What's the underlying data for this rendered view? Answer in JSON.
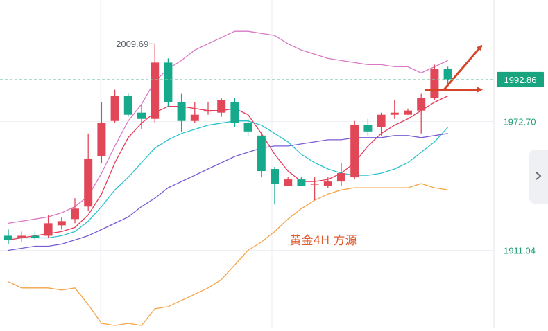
{
  "chart_data": {
    "type": "candlestick",
    "watermark": "黄金4H  方源",
    "y_axis": {
      "ticks": [
        {
          "value": 1972.7,
          "label": "1972.70"
        },
        {
          "value": 1911.04,
          "label": "1911.04"
        }
      ],
      "ylim": [
        1874,
        2031
      ],
      "current_price": {
        "value": 1992.86,
        "label": "1992.86"
      }
    },
    "annotation": {
      "label": "2009.69",
      "value": 2009.69,
      "candle_index": 11
    },
    "candles": [
      {
        "o": 1918,
        "h": 1921,
        "l": 1914,
        "c": 1916
      },
      {
        "o": 1917,
        "h": 1920,
        "l": 1915,
        "c": 1918
      },
      {
        "o": 1918,
        "h": 1920,
        "l": 1916,
        "c": 1917
      },
      {
        "o": 1918,
        "h": 1928,
        "l": 1917,
        "c": 1924
      },
      {
        "o": 1923,
        "h": 1927,
        "l": 1921,
        "c": 1925
      },
      {
        "o": 1926,
        "h": 1936,
        "l": 1924,
        "c": 1931
      },
      {
        "o": 1932,
        "h": 1967,
        "l": 1930,
        "c": 1955
      },
      {
        "o": 1956,
        "h": 1982,
        "l": 1953,
        "c": 1972
      },
      {
        "o": 1973,
        "h": 1988,
        "l": 1972,
        "c": 1985
      },
      {
        "o": 1985,
        "h": 1986,
        "l": 1975,
        "c": 1976
      },
      {
        "o": 1977,
        "h": 1981,
        "l": 1969,
        "c": 1974
      },
      {
        "o": 1974,
        "h": 2009.69,
        "l": 1972,
        "c": 2001
      },
      {
        "o": 2001,
        "h": 2003,
        "l": 1980,
        "c": 1982
      },
      {
        "o": 1982,
        "h": 1986,
        "l": 1968,
        "c": 1973
      },
      {
        "o": 1973,
        "h": 1982,
        "l": 1972,
        "c": 1976
      },
      {
        "o": 1978,
        "h": 1982,
        "l": 1976,
        "c": 1978
      },
      {
        "o": 1977,
        "h": 1984,
        "l": 1975,
        "c": 1983
      },
      {
        "o": 1982,
        "h": 1984,
        "l": 1970,
        "c": 1972
      },
      {
        "o": 1972,
        "h": 1974,
        "l": 1966,
        "c": 1968
      },
      {
        "o": 1966,
        "h": 1967,
        "l": 1946,
        "c": 1949
      },
      {
        "o": 1950,
        "h": 1951,
        "l": 1933,
        "c": 1943
      },
      {
        "o": 1942,
        "h": 1946,
        "l": 1942,
        "c": 1945
      },
      {
        "o": 1945,
        "h": 1946,
        "l": 1942,
        "c": 1942
      },
      {
        "o": 1943,
        "h": 1946,
        "l": 1935,
        "c": 1943
      },
      {
        "o": 1942,
        "h": 1946,
        "l": 1941,
        "c": 1944
      },
      {
        "o": 1944,
        "h": 1953,
        "l": 1942,
        "c": 1948
      },
      {
        "o": 1946,
        "h": 1973,
        "l": 1945,
        "c": 1971
      },
      {
        "o": 1971,
        "h": 1974,
        "l": 1966,
        "c": 1968
      },
      {
        "o": 1970,
        "h": 1977,
        "l": 1966,
        "c": 1976
      },
      {
        "o": 1976,
        "h": 1983,
        "l": 1974,
        "c": 1977
      },
      {
        "o": 1976,
        "h": 1979,
        "l": 1976,
        "c": 1978
      },
      {
        "o": 1978,
        "h": 1986,
        "l": 1967,
        "c": 1984
      },
      {
        "o": 1984,
        "h": 2000,
        "l": 1983,
        "c": 1998
      },
      {
        "o": 1998,
        "h": 1999,
        "l": 1990,
        "c": 1993
      }
    ],
    "overlays": [
      {
        "name": "",
        "color": "#da77c6",
        "values": [
          1924,
          1925,
          1926,
          1927,
          1929,
          1932,
          1937,
          1948,
          1961,
          1973,
          1981,
          1992,
          1998,
          2002,
          2007,
          2010,
          2013,
          2016,
          2016,
          2015,
          2014,
          2010,
          2007,
          2005,
          2003,
          2002,
          2001,
          2000,
          2000,
          1999,
          1999,
          1996,
          1999,
          2002
        ]
      },
      {
        "name": "",
        "color": "#e8395b",
        "values": [
          1916,
          1917,
          1918,
          1919,
          1920,
          1922,
          1928,
          1938,
          1953,
          1965,
          1972,
          1977,
          1980,
          1980,
          1979,
          1978,
          1978,
          1979,
          1976,
          1967,
          1957,
          1949,
          1944,
          1944,
          1945,
          1948,
          1953,
          1961,
          1967,
          1971,
          1974,
          1978,
          1982,
          1985
        ]
      },
      {
        "name": "",
        "color": "#2cc3cf",
        "values": [
          1917,
          1917,
          1917,
          1917,
          1918,
          1920,
          1925,
          1932,
          1940,
          1946,
          1953,
          1960,
          1964,
          1967,
          1969,
          1971,
          1972,
          1973,
          1973,
          1971,
          1967,
          1963,
          1957,
          1953,
          1950,
          1948,
          1947,
          1947,
          1948,
          1950,
          1953,
          1958,
          1963,
          1970
        ]
      },
      {
        "name": "",
        "color": "#7a5cd4",
        "values": [
          1911,
          1912,
          1913,
          1913,
          1914,
          1916,
          1918,
          1921,
          1924,
          1927,
          1932,
          1936,
          1941,
          1944,
          1947,
          1950,
          1953,
          1956,
          1958,
          1960,
          1961,
          1961,
          1962,
          1963,
          1964,
          1964,
          1965,
          1965,
          1965,
          1966,
          1966,
          1965,
          1966,
          1967
        ]
      },
      {
        "name": "",
        "color": "#f5a347",
        "values": [
          1896,
          1893,
          1893,
          1893,
          1892,
          1893,
          1885,
          1876,
          1875,
          1876,
          1875,
          1883,
          1884,
          1887,
          1890,
          1893,
          1897,
          1904,
          1911,
          1915,
          1920,
          1926,
          1931,
          1935,
          1938,
          1940,
          1941,
          1941,
          1941,
          1941,
          1941,
          1943,
          1941,
          1940
        ]
      }
    ],
    "forecast_arrows": [
      {
        "from_value": 1988,
        "to_value": 2009
      },
      {
        "from_value": 1988,
        "to_value": 1988
      }
    ],
    "grid": true,
    "colors": {
      "up": "#e14756",
      "down": "#16a98b",
      "axis_text": "#1f9e74",
      "price_tag": "#17a47f",
      "watermark": "#e25a2f",
      "arrow": "#d4452a",
      "annotation": "#5a5f69",
      "grid": "#eceef2"
    }
  }
}
